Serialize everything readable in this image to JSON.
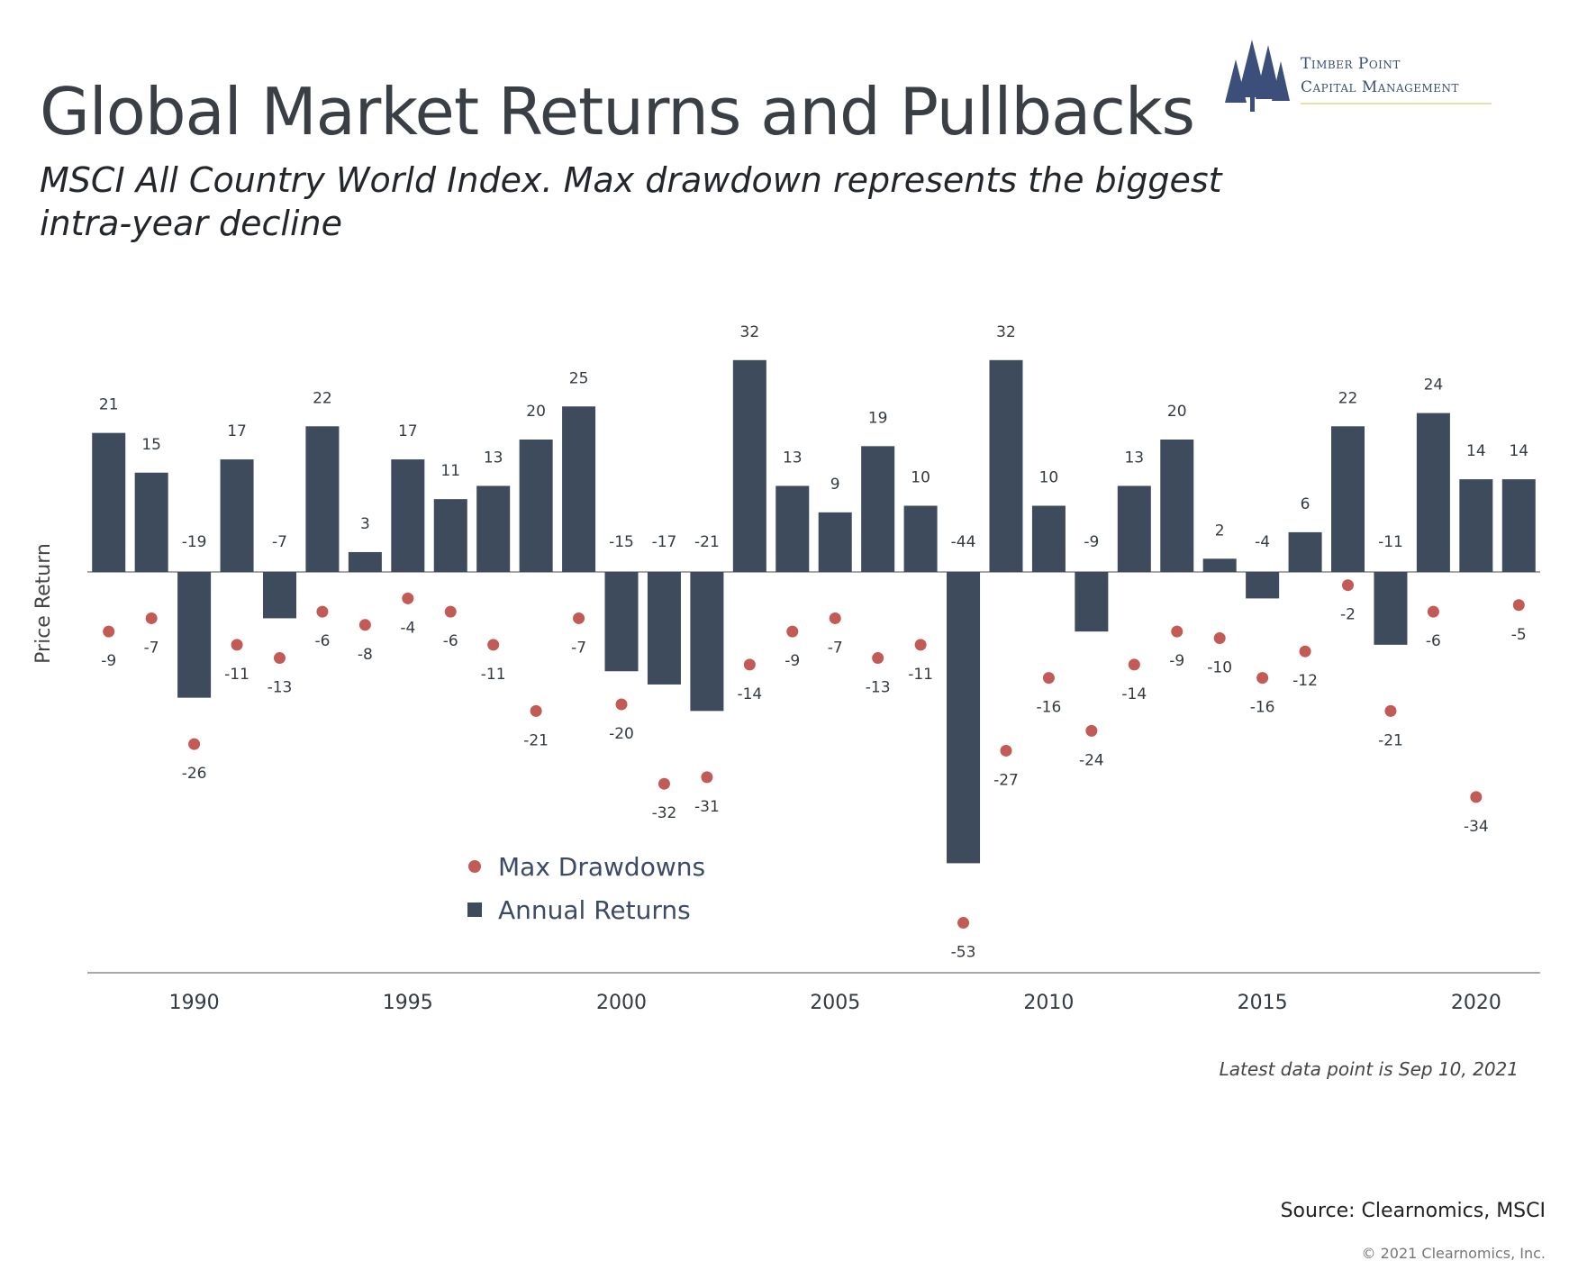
{
  "header": {
    "title": "Global Market Returns and Pullbacks",
    "subtitle": "MSCI All Country World Index. Max drawdown represents the biggest intra-year decline"
  },
  "logo": {
    "line1": "Timber Point",
    "line2": "Capital Management",
    "icon": "pine-trees-icon"
  },
  "footer": {
    "note": "Latest data point is Sep 10, 2021",
    "source": "Source: Clearnomics, MSCI",
    "copyright": "© 2021 Clearnomics, Inc."
  },
  "colors": {
    "bar": "#3e4b5c",
    "dot": "#c25a55",
    "axis": "#8a8a8a",
    "text": "#333a40"
  },
  "chart_data": {
    "type": "bar",
    "ylabel": "Price Return",
    "xlabel": "",
    "ylim": [
      -60,
      35
    ],
    "x": [
      1988,
      1989,
      1990,
      1991,
      1992,
      1993,
      1994,
      1995,
      1996,
      1997,
      1998,
      1999,
      2000,
      2001,
      2002,
      2003,
      2004,
      2005,
      2006,
      2007,
      2008,
      2009,
      2010,
      2011,
      2012,
      2013,
      2014,
      2015,
      2016,
      2017,
      2018,
      2019,
      2020,
      2021
    ],
    "x_ticks": [
      1990,
      1995,
      2000,
      2005,
      2010,
      2015,
      2020
    ],
    "series": [
      {
        "name": "Annual Returns",
        "mark": "bar",
        "values": [
          21,
          15,
          -19,
          17,
          -7,
          22,
          3,
          17,
          11,
          13,
          20,
          25,
          -15,
          -17,
          -21,
          32,
          13,
          9,
          19,
          10,
          -44,
          32,
          10,
          -9,
          13,
          20,
          2,
          -4,
          6,
          22,
          -11,
          24,
          14,
          14
        ]
      },
      {
        "name": "Max Drawdowns",
        "mark": "dot",
        "values": [
          -9,
          -7,
          -26,
          -11,
          -13,
          -6,
          -8,
          -4,
          -6,
          -11,
          -21,
          -7,
          -20,
          -32,
          -31,
          -14,
          -9,
          -7,
          -13,
          -11,
          -53,
          -27,
          -16,
          -24,
          -14,
          -9,
          -10,
          -16,
          -12,
          -2,
          -21,
          -6,
          -34,
          -5
        ]
      }
    ],
    "legend_position": "bottom-center",
    "grid": false
  }
}
